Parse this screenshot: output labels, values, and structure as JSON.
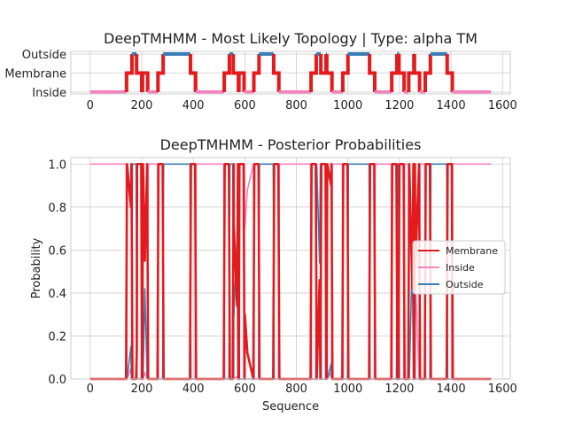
{
  "chart_data": [
    {
      "type": "line",
      "title": "DeepTMHMM - Most Likely Topology | Type: alpha TM",
      "xlabel": "",
      "ylabel": "",
      "xlim": [
        -75,
        1630
      ],
      "xticks": [
        0,
        200,
        400,
        600,
        800,
        1000,
        1200,
        1400,
        1600
      ],
      "yticks": [
        {
          "value": 2,
          "label": "Outside"
        },
        {
          "value": 1,
          "label": "Membrane"
        },
        {
          "value": 0,
          "label": "Inside"
        }
      ],
      "grid": true,
      "sequence_length": 1555,
      "colors": {
        "Membrane": "#e41a1c",
        "Inside": "#f781bf",
        "Outside": "#377eb8"
      },
      "segments": [
        {
          "state": "Inside",
          "start": 0,
          "end": 141
        },
        {
          "state": "Membrane",
          "start": 141,
          "end": 162
        },
        {
          "state": "Outside",
          "start": 162,
          "end": 180
        },
        {
          "state": "Membrane",
          "start": 180,
          "end": 200
        },
        {
          "state": "Inside",
          "start": 200,
          "end": 203
        },
        {
          "state": "Membrane",
          "start": 203,
          "end": 223
        },
        {
          "state": "Inside",
          "start": 223,
          "end": 263
        },
        {
          "state": "Membrane",
          "start": 263,
          "end": 283
        },
        {
          "state": "Outside",
          "start": 283,
          "end": 389
        },
        {
          "state": "Membrane",
          "start": 389,
          "end": 409
        },
        {
          "state": "Inside",
          "start": 409,
          "end": 520
        },
        {
          "state": "Membrane",
          "start": 520,
          "end": 540
        },
        {
          "state": "Outside",
          "start": 540,
          "end": 555
        },
        {
          "state": "Membrane",
          "start": 555,
          "end": 575
        },
        {
          "state": "Inside",
          "start": 575,
          "end": 577
        },
        {
          "state": "Membrane",
          "start": 577,
          "end": 597
        },
        {
          "state": "Inside",
          "start": 597,
          "end": 635
        },
        {
          "state": "Membrane",
          "start": 635,
          "end": 655
        },
        {
          "state": "Outside",
          "start": 655,
          "end": 712
        },
        {
          "state": "Membrane",
          "start": 712,
          "end": 732
        },
        {
          "state": "Inside",
          "start": 732,
          "end": 857
        },
        {
          "state": "Membrane",
          "start": 857,
          "end": 877
        },
        {
          "state": "Outside",
          "start": 877,
          "end": 895
        },
        {
          "state": "Membrane",
          "start": 895,
          "end": 915
        },
        {
          "state": "Outside",
          "start": 915,
          "end": 918
        },
        {
          "state": "Membrane",
          "start": 918,
          "end": 938
        },
        {
          "state": "Inside",
          "start": 938,
          "end": 980
        },
        {
          "state": "Membrane",
          "start": 980,
          "end": 1000
        },
        {
          "state": "Outside",
          "start": 1000,
          "end": 1084
        },
        {
          "state": "Membrane",
          "start": 1084,
          "end": 1104
        },
        {
          "state": "Inside",
          "start": 1104,
          "end": 1170
        },
        {
          "state": "Membrane",
          "start": 1170,
          "end": 1190
        },
        {
          "state": "Outside",
          "start": 1190,
          "end": 1198
        },
        {
          "state": "Membrane",
          "start": 1198,
          "end": 1218
        },
        {
          "state": "Inside",
          "start": 1218,
          "end": 1236
        },
        {
          "state": "Membrane",
          "start": 1236,
          "end": 1256
        },
        {
          "state": "Outside",
          "start": 1256,
          "end": 1258
        },
        {
          "state": "Membrane",
          "start": 1258,
          "end": 1278
        },
        {
          "state": "Inside",
          "start": 1278,
          "end": 1300
        },
        {
          "state": "Membrane",
          "start": 1300,
          "end": 1320
        },
        {
          "state": "Outside",
          "start": 1320,
          "end": 1385
        },
        {
          "state": "Membrane",
          "start": 1385,
          "end": 1405
        },
        {
          "state": "Inside",
          "start": 1405,
          "end": 1555
        }
      ]
    },
    {
      "type": "line",
      "title": "DeepTMHMM - Posterior Probabilities",
      "xlabel": "Sequence",
      "ylabel": "Probability",
      "xlim": [
        -75,
        1630
      ],
      "ylim": [
        0,
        1.03
      ],
      "xticks": [
        0,
        200,
        400,
        600,
        800,
        1000,
        1200,
        1400,
        1600
      ],
      "yticks": [
        0.0,
        0.2,
        0.4,
        0.6,
        0.8,
        1.0
      ],
      "ytick_labels": [
        "0.0",
        "0.2",
        "0.4",
        "0.6",
        "0.8",
        "1.0"
      ],
      "grid": true,
      "legend": {
        "position": "center-right",
        "entries": [
          "Membrane",
          "Inside",
          "Outside"
        ]
      },
      "series": [
        {
          "name": "Membrane",
          "color": "#e41a1c"
        },
        {
          "name": "Inside",
          "color": "#f781bf"
        },
        {
          "name": "Outside",
          "color": "#377eb8"
        }
      ],
      "soft_points": [
        {
          "x": 158,
          "Membrane": 0.8,
          "Inside": 0.05,
          "Outside": 0.15
        },
        {
          "x": 181,
          "Membrane": 0.14,
          "Inside": 0.84,
          "Outside": 0.02
        },
        {
          "x": 212,
          "Membrane": 0.55,
          "Inside": 0.03,
          "Outside": 0.42
        },
        {
          "x": 557,
          "Membrane": 0.72,
          "Inside": 0.0,
          "Outside": 0.28
        },
        {
          "x": 570,
          "Membrane": 0.34,
          "Inside": 0.01,
          "Outside": 0.65
        },
        {
          "x": 600,
          "Membrane": 0.3,
          "Inside": 0.7,
          "Outside": 0.0
        },
        {
          "x": 610,
          "Membrane": 0.12,
          "Inside": 0.88,
          "Outside": 0.0
        },
        {
          "x": 890,
          "Membrane": 0.46,
          "Inside": 0.0,
          "Outside": 0.54
        },
        {
          "x": 918,
          "Membrane": 0.28,
          "Inside": 0.0,
          "Outside": 0.72
        },
        {
          "x": 935,
          "Membrane": 0.9,
          "Inside": 0.03,
          "Outside": 0.07
        },
        {
          "x": 1250,
          "Membrane": 0.42,
          "Inside": 0.0,
          "Outside": 0.58
        },
        {
          "x": 1262,
          "Membrane": 0.53,
          "Inside": 0.47,
          "Outside": 0.0
        }
      ]
    }
  ]
}
